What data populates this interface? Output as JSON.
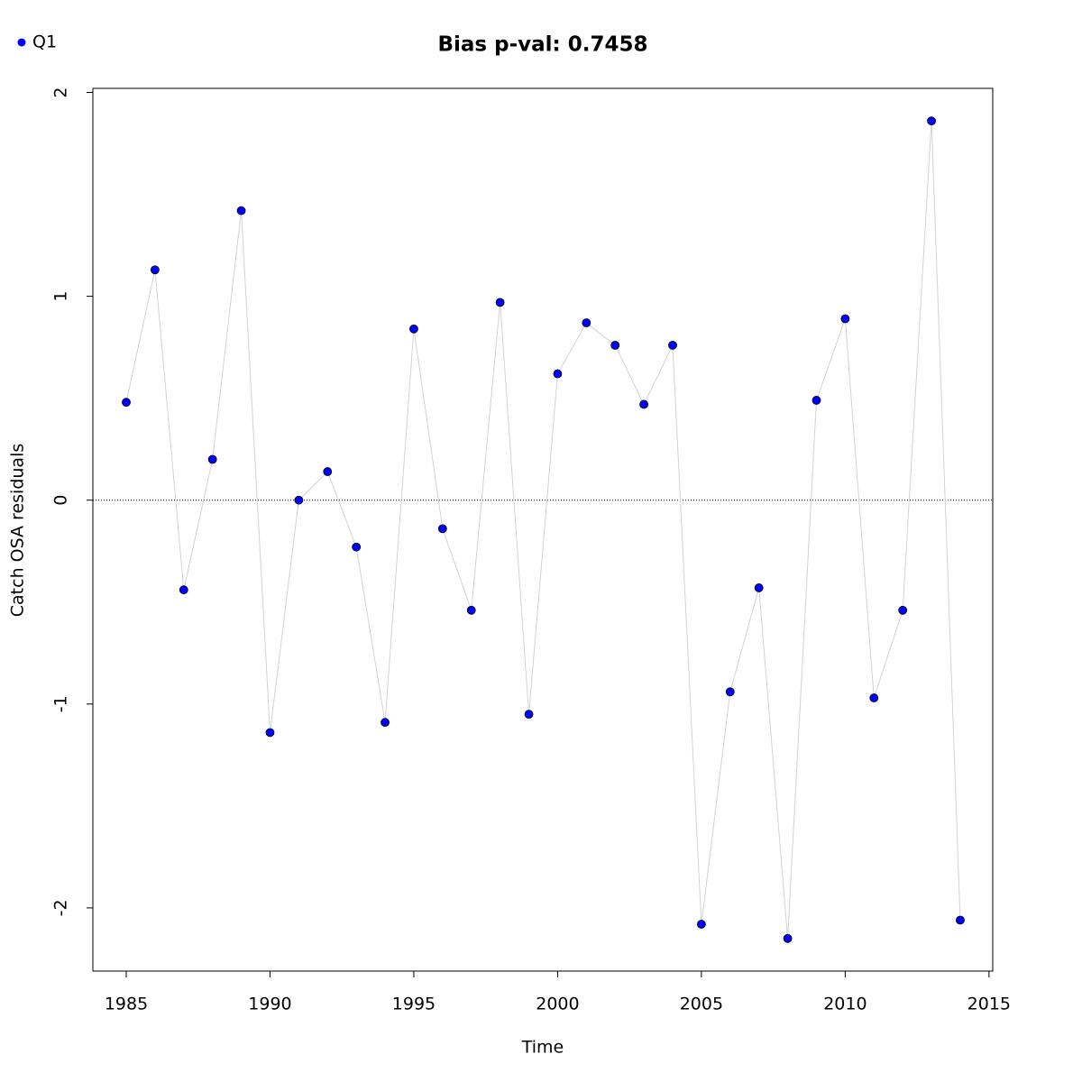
{
  "chart_data": {
    "type": "scatter",
    "title": "Bias p-val: 0.7458",
    "title_color": "#228b22",
    "x_label": "Time",
    "y_label": "Catch OSA residuals",
    "x": [
      1985,
      1986,
      1987,
      1988,
      1989,
      1990,
      1991,
      1992,
      1993,
      1994,
      1995,
      1996,
      1997,
      1998,
      1999,
      2000,
      2001,
      2002,
      2003,
      2004,
      2005,
      2006,
      2007,
      2008,
      2009,
      2010,
      2011,
      2012,
      2013,
      2014
    ],
    "series": [
      {
        "name": "Q1",
        "color": "#0000ff",
        "line_color": "#d3d3d3",
        "values": [
          0.48,
          1.13,
          -0.44,
          0.2,
          1.42,
          -1.14,
          0.0,
          0.14,
          -0.23,
          -1.09,
          0.84,
          -0.14,
          -0.54,
          0.97,
          -1.05,
          0.62,
          0.87,
          0.76,
          0.47,
          0.76,
          -2.08,
          -0.94,
          -0.43,
          -2.15,
          0.49,
          0.89,
          -0.97,
          -0.54,
          1.86,
          -2.06
        ]
      }
    ],
    "xlim": [
      1983.84,
      2015.13
    ],
    "ylim": [
      -2.31,
      2.02
    ],
    "xticks": [
      1985,
      1990,
      1995,
      2000,
      2005,
      2010,
      2015
    ],
    "yticks": [
      -2,
      -1,
      0,
      1,
      2
    ],
    "hline": 0,
    "legend": "top-left"
  }
}
